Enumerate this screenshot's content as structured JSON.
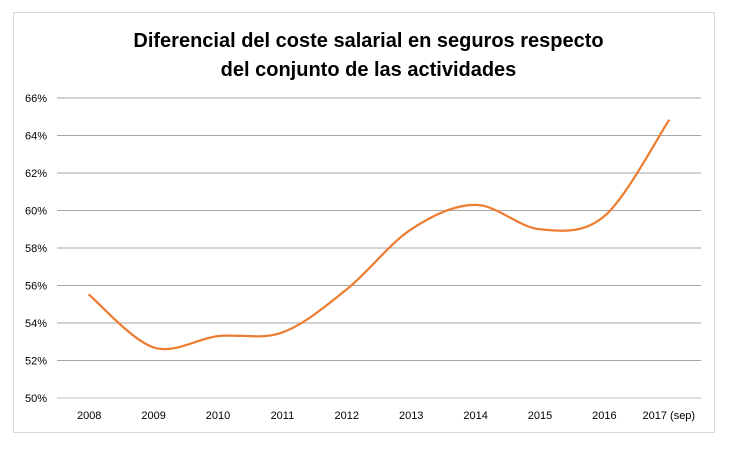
{
  "chart_data": {
    "type": "line",
    "title": "Diferencial del coste salarial en seguros respecto\ndel conjunto de las actividades",
    "xlabel": "",
    "ylabel": "",
    "categories": [
      "2008",
      "2009",
      "2010",
      "2011",
      "2012",
      "2013",
      "2014",
      "2015",
      "2016",
      "2017 (sep)"
    ],
    "series": [
      {
        "values": [
          55.5,
          52.7,
          53.3,
          53.5,
          55.8,
          59.0,
          60.3,
          59.0,
          59.7,
          64.8
        ]
      }
    ],
    "ylim": [
      50,
      66
    ],
    "yticks": [
      50,
      52,
      54,
      56,
      58,
      60,
      62,
      64,
      66
    ],
    "ytick_suffix": "%",
    "grid": "horizontal",
    "legend": "none",
    "colors": {
      "series": "#ed7d31",
      "grid": "#a6a6a6"
    }
  }
}
